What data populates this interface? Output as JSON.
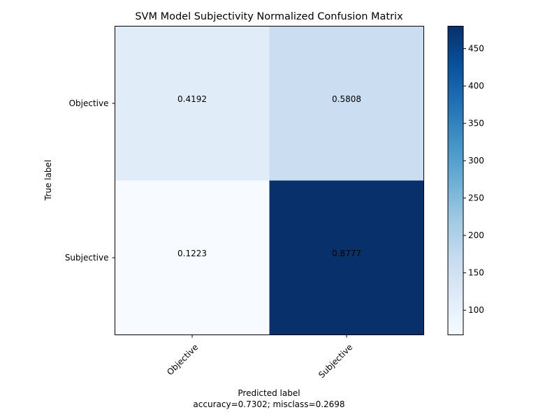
{
  "chart_data": {
    "type": "heatmap",
    "title": "SVM Model Subjectivity Normalized Confusion Matrix",
    "xlabel": "Predicted label",
    "xlabel_sub": "accuracy=0.7302; misclass=0.2698",
    "ylabel": "True label",
    "x_categories": [
      "Objective",
      "Subjective"
    ],
    "y_categories": [
      "Objective",
      "Subjective"
    ],
    "cells": [
      {
        "row": 0,
        "col": 0,
        "label": "0.4192",
        "color_value": 115
      },
      {
        "row": 0,
        "col": 1,
        "label": "0.5808",
        "color_value": 159
      },
      {
        "row": 1,
        "col": 0,
        "label": "0.1223",
        "color_value": 67
      },
      {
        "row": 1,
        "col": 1,
        "label": "0.8777",
        "color_value": 480
      }
    ],
    "colorbar": {
      "colormap": "Blues",
      "range": [
        67,
        480
      ],
      "ticks": [
        "100",
        "150",
        "200",
        "250",
        "300",
        "350",
        "400",
        "450"
      ]
    }
  }
}
